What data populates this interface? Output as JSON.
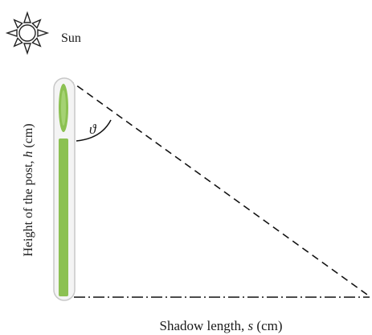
{
  "sun": {
    "icon": "sun-icon",
    "label": "Sun"
  },
  "post": {
    "icon": "post-icon",
    "color": "#8cc152",
    "outline_color": "#c8c8c8"
  },
  "angle": {
    "symbol": "ϑ"
  },
  "y_axis_label": {
    "prefix": "Height of the post, ",
    "variable": "h",
    "suffix": " (cm)"
  },
  "x_axis_label": {
    "prefix": "Shadow length, ",
    "variable": "s",
    "suffix": " (cm)"
  },
  "lines": {
    "sun_ray_style": "dashed",
    "shadow_style": "dash-dot"
  }
}
